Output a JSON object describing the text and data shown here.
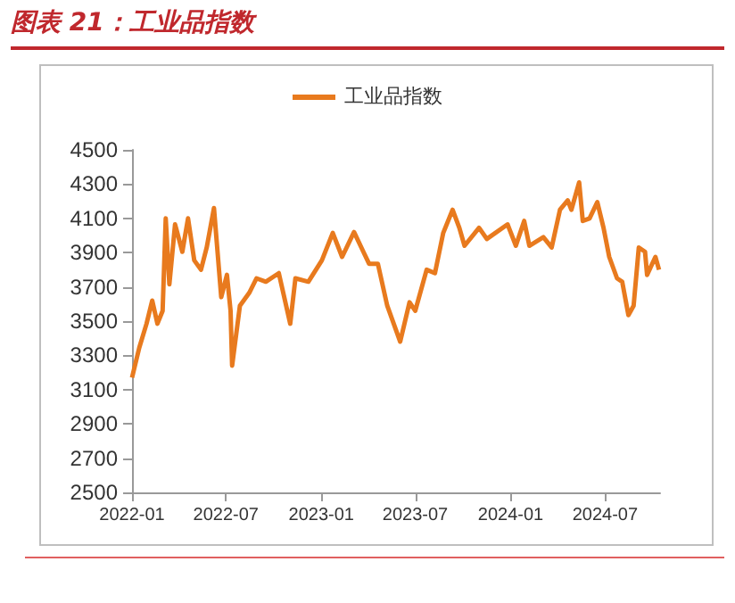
{
  "chart_data": {
    "type": "line",
    "title": "图表 21：工业品指数",
    "x": [
      "2022-01-01",
      "2022-01-15",
      "2022-01-29",
      "2022-02-09",
      "2022-02-19",
      "2022-03-01",
      "2022-03-07",
      "2022-03-14",
      "2022-03-25",
      "2022-04-08",
      "2022-04-19",
      "2022-05-01",
      "2022-05-14",
      "2022-05-25",
      "2022-06-08",
      "2022-06-22",
      "2022-07-03",
      "2022-07-10",
      "2022-07-13",
      "2022-07-28",
      "2022-08-15",
      "2022-08-29",
      "2022-09-16",
      "2022-10-11",
      "2022-11-02",
      "2022-11-12",
      "2022-12-07",
      "2023-01-02",
      "2023-01-23",
      "2023-02-10",
      "2023-03-05",
      "2023-03-23",
      "2023-04-03",
      "2023-04-20",
      "2023-05-08",
      "2023-06-02",
      "2023-06-20",
      "2023-07-01",
      "2023-07-23",
      "2023-08-08",
      "2023-08-24",
      "2023-09-11",
      "2023-09-24",
      "2023-10-04",
      "2023-11-01",
      "2023-11-16",
      "2023-12-26",
      "2024-01-11",
      "2024-01-27",
      "2024-02-06",
      "2024-03-04",
      "2024-03-20",
      "2024-04-05",
      "2024-04-20",
      "2024-04-27",
      "2024-05-12",
      "2024-05-19",
      "2024-06-01",
      "2024-06-16",
      "2024-06-28",
      "2024-07-09",
      "2024-07-24",
      "2024-08-03",
      "2024-08-15",
      "2024-08-25",
      "2024-09-04",
      "2024-09-16",
      "2024-09-20",
      "2024-10-06",
      "2024-10-13"
    ],
    "series": [
      {
        "name": "工业品指数",
        "color": "#e87a1e",
        "values": [
          3170,
          3345,
          3485,
          3620,
          3485,
          3560,
          4100,
          3715,
          4065,
          3905,
          4100,
          3855,
          3800,
          3930,
          4160,
          3640,
          3770,
          3560,
          3240,
          3590,
          3665,
          3750,
          3730,
          3780,
          3485,
          3750,
          3730,
          3855,
          4015,
          3875,
          4020,
          3905,
          3835,
          3835,
          3590,
          3380,
          3610,
          3560,
          3800,
          3780,
          4015,
          4150,
          4045,
          3940,
          4045,
          3980,
          4065,
          3940,
          4085,
          3940,
          3990,
          3930,
          4150,
          4205,
          4150,
          4310,
          4085,
          4100,
          4195,
          4045,
          3875,
          3750,
          3730,
          3535,
          3590,
          3930,
          3905,
          3770,
          3875,
          3800
        ]
      }
    ],
    "xlim": [
      "2022-01-01",
      "2024-10-15"
    ],
    "xticks": [
      "2022-01",
      "2022-07",
      "2023-01",
      "2023-07",
      "2024-01",
      "2024-07"
    ],
    "ylim": [
      2500,
      4500
    ],
    "yticks": [
      2500,
      2700,
      2900,
      3100,
      3300,
      3500,
      3700,
      3900,
      4100,
      4300,
      4500
    ],
    "legend": "top",
    "grid": false,
    "marker": "none",
    "line_style": "solid"
  }
}
